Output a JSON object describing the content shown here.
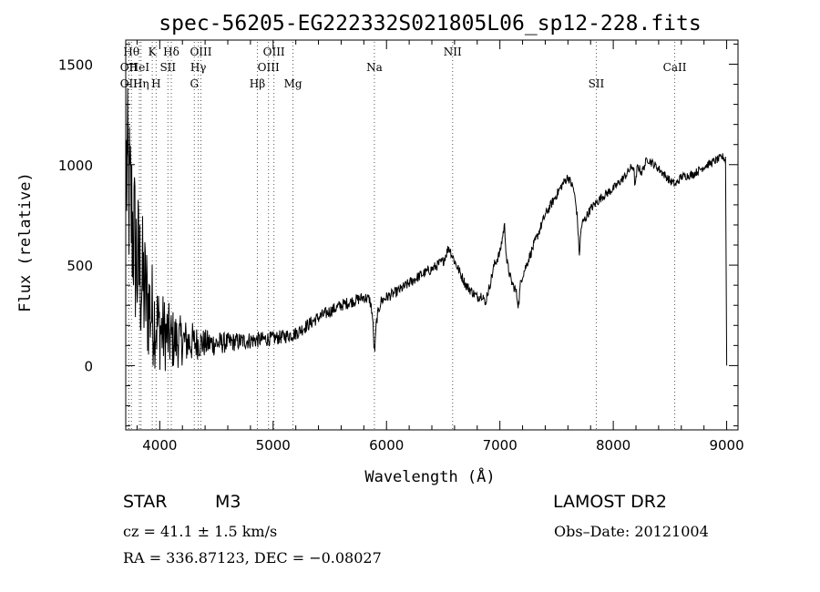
{
  "chart_data": {
    "type": "line",
    "title": "spec-56205-EG222332S021805L06_sp12-228.fits",
    "xlabel": "Wavelength (Å)",
    "ylabel": "Flux (relative)",
    "xlim": [
      3700,
      9100
    ],
    "ylim": [
      -320,
      1620
    ],
    "x_ticks": [
      4000,
      5000,
      6000,
      7000,
      8000,
      9000
    ],
    "x_tick_labels": [
      "4000",
      "5000",
      "6000",
      "7000",
      "8000",
      "9000"
    ],
    "y_ticks": [
      0,
      500,
      1000,
      1500
    ],
    "y_tick_labels": [
      "0",
      "500",
      "1000",
      "1500"
    ],
    "grid": false,
    "lines": [
      {
        "label": "OII",
        "x": 3727,
        "row": 2
      },
      {
        "label": "Hθ",
        "x": 3750,
        "row": 0
      },
      {
        "label": "OII",
        "x": 3727,
        "row": 1
      },
      {
        "label": "HeI",
        "x": 3820,
        "row": 1
      },
      {
        "label": "Hη",
        "x": 3835,
        "row": 2
      },
      {
        "label": "K",
        "x": 3934,
        "row": 0
      },
      {
        "label": "H",
        "x": 3968,
        "row": 2
      },
      {
        "label": "SII",
        "x": 4072,
        "row": 1
      },
      {
        "label": "Hδ",
        "x": 4102,
        "row": 0
      },
      {
        "label": "OIII",
        "x": 4363,
        "row": 0
      },
      {
        "label": "Hγ",
        "x": 4340,
        "row": 1
      },
      {
        "label": "G",
        "x": 4305,
        "row": 2
      },
      {
        "label": "Hβ",
        "x": 4861,
        "row": 2
      },
      {
        "label": "OIII",
        "x": 4959,
        "row": 1
      },
      {
        "label": "OIII",
        "x": 5007,
        "row": 0
      },
      {
        "label": "Mg",
        "x": 5175,
        "row": 2
      },
      {
        "label": "Na",
        "x": 5893,
        "row": 1
      },
      {
        "label": "NII",
        "x": 6583,
        "row": 0
      },
      {
        "label": "SII",
        "x": 7850,
        "row": 2
      },
      {
        "label": "CaII",
        "x": 8542,
        "row": 1
      }
    ],
    "series": [
      {
        "knots": [
          [
            3700,
            1000
          ],
          [
            3740,
            800
          ],
          [
            3800,
            500
          ],
          [
            3900,
            300
          ],
          [
            4000,
            180
          ],
          [
            4100,
            130
          ],
          [
            4200,
            120
          ],
          [
            4300,
            115
          ],
          [
            4400,
            110
          ],
          [
            4500,
            110
          ],
          [
            4600,
            115
          ],
          [
            4700,
            120
          ],
          [
            4800,
            125
          ],
          [
            4900,
            130
          ],
          [
            5000,
            135
          ],
          [
            5100,
            145
          ],
          [
            5200,
            160
          ],
          [
            5300,
            200
          ],
          [
            5400,
            240
          ],
          [
            5500,
            270
          ],
          [
            5600,
            300
          ],
          [
            5700,
            320
          ],
          [
            5800,
            340
          ],
          [
            5850,
            330
          ],
          [
            5900,
            200
          ],
          [
            5950,
            320
          ],
          [
            6000,
            340
          ],
          [
            6100,
            370
          ],
          [
            6200,
            410
          ],
          [
            6300,
            450
          ],
          [
            6400,
            480
          ],
          [
            6500,
            520
          ],
          [
            6550,
            590
          ],
          [
            6600,
            520
          ],
          [
            6700,
            400
          ],
          [
            6800,
            340
          ],
          [
            6900,
            370
          ],
          [
            6950,
            500
          ],
          [
            7000,
            560
          ],
          [
            7040,
            700
          ],
          [
            7060,
            520
          ],
          [
            7100,
            420
          ],
          [
            7150,
            360
          ],
          [
            7200,
            450
          ],
          [
            7300,
            600
          ],
          [
            7400,
            750
          ],
          [
            7500,
            850
          ],
          [
            7550,
            900
          ],
          [
            7600,
            940
          ],
          [
            7650,
            880
          ],
          [
            7700,
            680
          ],
          [
            7750,
            730
          ],
          [
            7800,
            780
          ],
          [
            7900,
            840
          ],
          [
            8000,
            880
          ],
          [
            8100,
            940
          ],
          [
            8150,
            980
          ],
          [
            8200,
            1010
          ],
          [
            8250,
            960
          ],
          [
            8300,
            1030
          ],
          [
            8400,
            980
          ],
          [
            8500,
            920
          ],
          [
            8550,
            900
          ],
          [
            8600,
            940
          ],
          [
            8700,
            950
          ],
          [
            8800,
            990
          ],
          [
            8900,
            1020
          ],
          [
            8970,
            1040
          ],
          [
            9000,
            1000
          ]
        ],
        "noise": [
          [
            3700,
            480
          ],
          [
            3800,
            420
          ],
          [
            3900,
            300
          ],
          [
            4000,
            210
          ],
          [
            4200,
            120
          ],
          [
            4400,
            80
          ],
          [
            4600,
            55
          ],
          [
            5000,
            40
          ],
          [
            6000,
            30
          ],
          [
            7000,
            28
          ],
          [
            8000,
            25
          ],
          [
            9000,
            22
          ]
        ],
        "absorption_dips": [
          {
            "x": 5893,
            "depth": 140
          },
          {
            "x": 7700,
            "depth": 120
          },
          {
            "x": 8195,
            "depth": 110
          },
          {
            "x": 6870,
            "depth": 60
          },
          {
            "x": 7165,
            "depth": 80
          }
        ]
      }
    ]
  },
  "footer": {
    "object_class": "STAR",
    "subclass": "M3",
    "survey": "LAMOST DR2",
    "cz": "cz = 41.1 ± 1.5 km/s",
    "obs_date": "Obs–Date: 20121004",
    "coords": "RA = 336.87123, DEC =  −0.08027"
  }
}
